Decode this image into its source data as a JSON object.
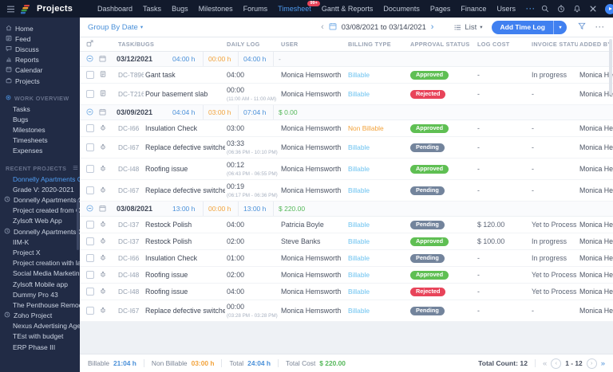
{
  "topbar": {
    "product": "Projects",
    "nav": [
      {
        "label": "Dashboard"
      },
      {
        "label": "Tasks"
      },
      {
        "label": "Bugs"
      },
      {
        "label": "Milestones"
      },
      {
        "label": "Forums"
      },
      {
        "label": "Timesheet",
        "active": true,
        "badge": "99+"
      },
      {
        "label": "Gantt & Reports"
      },
      {
        "label": "Documents"
      },
      {
        "label": "Pages"
      },
      {
        "label": "Finance"
      },
      {
        "label": "Users"
      },
      {
        "label": "···",
        "more": true
      }
    ]
  },
  "toolbar": {
    "group_by": "Group By Date",
    "date_range": "03/08/2021 to 03/14/2021",
    "view_label": "List",
    "add_label": "Add Time Log"
  },
  "sidebar": {
    "primary": [
      {
        "label": "Home",
        "icon": "home"
      },
      {
        "label": "Feed",
        "icon": "feed"
      },
      {
        "label": "Discuss",
        "icon": "discuss"
      },
      {
        "label": "Reports",
        "icon": "reports"
      },
      {
        "label": "Calendar",
        "icon": "calendar"
      },
      {
        "label": "Projects",
        "icon": "projects"
      }
    ],
    "work_overview": {
      "title": "WORK OVERVIEW",
      "items": [
        "Tasks",
        "Bugs",
        "Milestones",
        "Timesheets",
        "Expenses"
      ]
    },
    "recent_projects": {
      "title": "RECENT PROJECTS",
      "items": [
        {
          "label": "Donnelly Apartments C",
          "active": true
        },
        {
          "label": "Grade V: 2020-2021"
        },
        {
          "label": "Donnelly Apartments C",
          "clock": true
        },
        {
          "label": "Project created from C"
        },
        {
          "label": "Zylsoft Web App"
        },
        {
          "label": "Donnelly Apartments C",
          "clock": true
        },
        {
          "label": "IIM-K"
        },
        {
          "label": "Project X"
        },
        {
          "label": "Project creation with la"
        },
        {
          "label": "Social Media Marketing"
        },
        {
          "label": "Zylsoft Mobile app"
        },
        {
          "label": "Dummy Pro 43"
        },
        {
          "label": "The Penthouse Remod"
        },
        {
          "label": "Zoho Project",
          "clock": true
        },
        {
          "label": "Nexus Advertising Age"
        },
        {
          "label": "TEst with budget"
        },
        {
          "label": "ERP Phase III"
        }
      ]
    }
  },
  "table": {
    "headers": [
      "TASK/BUGS",
      "DAILY LOG",
      "USER",
      "BILLING TYPE",
      "APPROVAL STATUS",
      "LOG COST",
      "INVOICE STATUS",
      "ADDED BY"
    ],
    "groups": [
      {
        "date": "03/12/2021",
        "billable": "04:00 h",
        "non_billable": "00:00 h",
        "total": "04:00 h",
        "cost": "-",
        "rows": [
          {
            "type": "task",
            "id": "DC-T896",
            "name": "Gant task",
            "time": "04:00",
            "range": "",
            "user": "Monica Hemsworth",
            "billing": "Billable",
            "approval": "Approved",
            "cost": "-",
            "invoice": "In progress",
            "added_by": "Monica Hemsworth"
          },
          {
            "type": "task",
            "id": "DC-T216",
            "name": "Pour basement slab",
            "time": "00:00",
            "range": "(11:00 AM - 11:00 AM)",
            "user": "Monica Hemsworth",
            "billing": "Billable",
            "approval": "Rejected",
            "cost": "-",
            "invoice": "-",
            "added_by": "Monica Hemsworth"
          }
        ]
      },
      {
        "date": "03/09/2021",
        "billable": "04:04 h",
        "non_billable": "03:00 h",
        "total": "07:04 h",
        "cost": "$ 0.00",
        "rows": [
          {
            "type": "bug",
            "id": "DC-I66",
            "name": "Insulation Check",
            "time": "03:00",
            "range": "",
            "user": "Monica Hemsworth",
            "billing": "Non Billable",
            "approval": "Approved",
            "cost": "-",
            "invoice": "-",
            "added_by": "Monica Hemsworth"
          },
          {
            "type": "bug",
            "id": "DC-I67",
            "name": "Replace defective switches",
            "time": "03:33",
            "range": "(06:36 PM - 10:10 PM)",
            "user": "Monica Hemsworth",
            "billing": "Billable",
            "approval": "Pending",
            "cost": "-",
            "invoice": "-",
            "added_by": "Monica Hemsworth"
          },
          {
            "type": "bug",
            "id": "DC-I48",
            "name": "Roofing issue",
            "time": "00:12",
            "range": "(06:43 PM - 06:55 PM)",
            "user": "Monica Hemsworth",
            "billing": "Billable",
            "approval": "Approved",
            "cost": "-",
            "invoice": "-",
            "added_by": "Monica Hemsworth"
          },
          {
            "type": "bug",
            "id": "DC-I67",
            "name": "Replace defective switches",
            "time": "00:19",
            "range": "(06:17 PM - 06:36 PM)",
            "user": "Monica Hemsworth",
            "billing": "Billable",
            "approval": "Pending",
            "cost": "-",
            "invoice": "-",
            "added_by": "Monica Hemsworth"
          }
        ]
      },
      {
        "date": "03/08/2021",
        "billable": "13:00 h",
        "non_billable": "00:00 h",
        "total": "13:00 h",
        "cost": "$ 220.00",
        "rows": [
          {
            "type": "bug",
            "id": "DC-I37",
            "name": "Restock Polish",
            "time": "04:00",
            "range": "",
            "user": "Patricia Boyle",
            "billing": "Billable",
            "approval": "Pending",
            "cost": "$ 120.00",
            "invoice": "Yet to Process",
            "added_by": "Monica Hemsworth"
          },
          {
            "type": "bug",
            "id": "DC-I37",
            "name": "Restock Polish",
            "time": "02:00",
            "range": "",
            "user": "Steve Banks",
            "billing": "Billable",
            "approval": "Approved",
            "cost": "$ 100.00",
            "invoice": "In progress",
            "added_by": "Monica Hemsworth"
          },
          {
            "type": "bug",
            "id": "DC-I66",
            "name": "Insulation Check",
            "time": "01:00",
            "range": "",
            "user": "Monica Hemsworth",
            "billing": "Billable",
            "approval": "Pending",
            "cost": "-",
            "invoice": "In progress",
            "added_by": "Monica Hemsworth"
          },
          {
            "type": "bug",
            "id": "DC-I48",
            "name": "Roofing issue",
            "time": "02:00",
            "range": "",
            "user": "Monica Hemsworth",
            "billing": "Billable",
            "approval": "Approved",
            "cost": "-",
            "invoice": "Yet to Process",
            "added_by": "Monica Hemsworth"
          },
          {
            "type": "bug",
            "id": "DC-I48",
            "name": "Roofing issue",
            "time": "04:00",
            "range": "",
            "user": "Monica Hemsworth",
            "billing": "Billable",
            "approval": "Rejected",
            "cost": "-",
            "invoice": "Yet to Process",
            "added_by": "Monica Hemsworth"
          },
          {
            "type": "bug",
            "id": "DC-I67",
            "name": "Replace defective switches",
            "time": "00:00",
            "range": "(03:28 PM - 03:28 PM)",
            "user": "Monica Hemsworth",
            "billing": "Billable",
            "approval": "Pending",
            "cost": "-",
            "invoice": "-",
            "added_by": "Monica Hemsworth"
          }
        ]
      }
    ]
  },
  "footer": {
    "billable_label": "Billable",
    "billable_value": "21:04 h",
    "non_billable_label": "Non Billable",
    "non_billable_value": "03:00 h",
    "total_label": "Total",
    "total_value": "24:04 h",
    "total_cost_label": "Total Cost",
    "total_cost_value": "$ 220.00",
    "total_count": "Total Count: 12",
    "page_range": "1 - 12"
  },
  "colors": {
    "accent": "#4080f0",
    "billable": "#6cc3f0",
    "non_billable": "#f2a33c",
    "approved": "#5fbf53",
    "rejected": "#e8445a",
    "pending": "#73849c",
    "cost": "#55b85a"
  }
}
